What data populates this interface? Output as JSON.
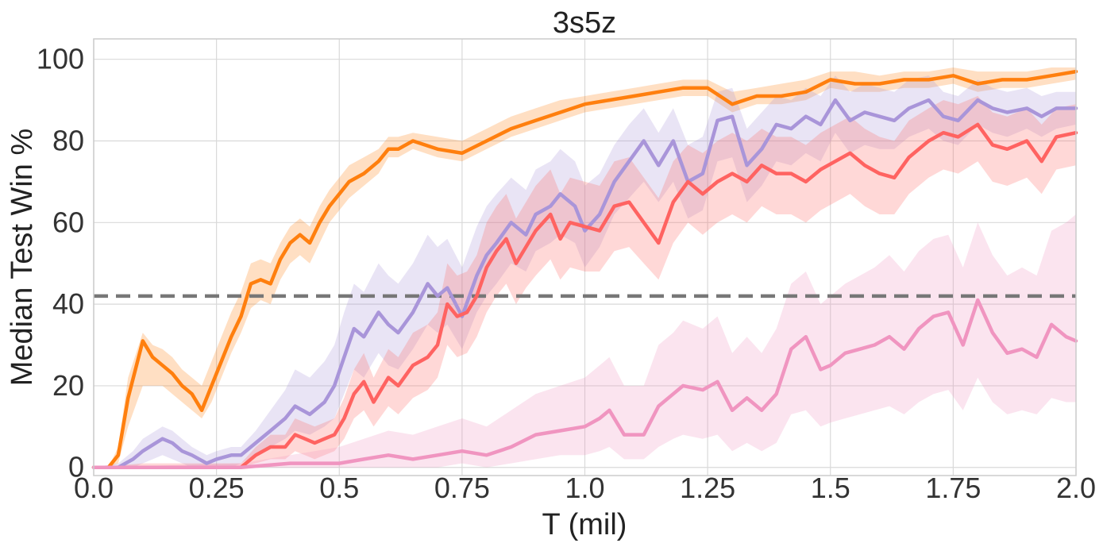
{
  "chart_data": {
    "type": "line",
    "title": "3s5z",
    "xlabel": "T (mil)",
    "ylabel": "Median Test Win %",
    "xlim": [
      0,
      2.0
    ],
    "ylim": [
      -2,
      105
    ],
    "x_ticks": [
      "0.0",
      "0.25",
      "0.5",
      "0.75",
      "1.0",
      "1.25",
      "1.5",
      "1.75",
      "2.0"
    ],
    "y_ticks": [
      "0",
      "20",
      "40",
      "60",
      "80",
      "100"
    ],
    "grid": true,
    "legend": "none",
    "reference_line": {
      "y": 42,
      "style": "dashed",
      "color": "#777777"
    },
    "series": [
      {
        "color": "#ff7f0e",
        "x": [
          0,
          0.03,
          0.05,
          0.07,
          0.1,
          0.12,
          0.14,
          0.16,
          0.18,
          0.2,
          0.22,
          0.24,
          0.26,
          0.28,
          0.3,
          0.32,
          0.34,
          0.36,
          0.38,
          0.4,
          0.42,
          0.44,
          0.46,
          0.48,
          0.5,
          0.52,
          0.55,
          0.58,
          0.6,
          0.62,
          0.65,
          0.7,
          0.75,
          0.8,
          0.85,
          0.9,
          0.95,
          1.0,
          1.05,
          1.1,
          1.15,
          1.2,
          1.25,
          1.3,
          1.35,
          1.4,
          1.45,
          1.5,
          1.55,
          1.6,
          1.65,
          1.7,
          1.75,
          1.8,
          1.85,
          1.9,
          1.95,
          2.0
        ],
        "y": [
          0,
          0,
          3,
          17,
          31,
          27,
          25,
          23,
          20,
          18,
          14,
          20,
          26,
          32,
          37,
          45,
          46,
          45,
          51,
          55,
          57,
          55,
          60,
          64,
          67,
          70,
          72,
          75,
          78,
          78,
          80,
          78,
          77,
          80,
          83,
          85,
          87,
          89,
          90,
          91,
          92,
          93,
          93,
          89,
          91,
          91,
          92,
          95,
          94,
          94,
          95,
          95,
          96,
          94,
          95,
          95,
          96,
          97
        ],
        "lower": [
          0,
          0,
          1,
          10,
          20,
          20,
          20,
          18,
          16,
          14,
          12,
          16,
          22,
          28,
          33,
          39,
          41,
          40,
          46,
          50,
          52,
          50,
          55,
          60,
          63,
          66,
          69,
          72,
          76,
          76,
          78,
          76,
          75,
          78,
          81,
          83,
          85,
          87,
          88,
          89,
          90,
          91,
          91,
          87,
          89,
          89,
          90,
          93,
          92,
          92,
          93,
          93,
          94,
          92,
          93,
          93,
          94,
          95
        ],
        "upper": [
          0,
          0,
          5,
          22,
          33,
          30,
          29,
          27,
          24,
          22,
          20,
          26,
          32,
          38,
          43,
          50,
          51,
          50,
          55,
          59,
          61,
          59,
          64,
          68,
          71,
          74,
          76,
          78,
          81,
          81,
          82,
          81,
          80,
          83,
          86,
          88,
          90,
          91,
          92,
          93,
          94,
          95,
          95,
          92,
          93,
          94,
          95,
          97,
          97,
          96,
          97,
          97,
          98,
          97,
          97,
          97,
          98,
          98
        ]
      },
      {
        "color": "#a995d9",
        "x": [
          0,
          0.05,
          0.08,
          0.1,
          0.14,
          0.16,
          0.18,
          0.2,
          0.23,
          0.25,
          0.28,
          0.3,
          0.33,
          0.36,
          0.39,
          0.41,
          0.44,
          0.47,
          0.49,
          0.51,
          0.53,
          0.55,
          0.58,
          0.6,
          0.62,
          0.65,
          0.68,
          0.7,
          0.72,
          0.75,
          0.78,
          0.8,
          0.82,
          0.85,
          0.88,
          0.9,
          0.93,
          0.95,
          0.98,
          1.0,
          1.03,
          1.06,
          1.09,
          1.12,
          1.15,
          1.18,
          1.21,
          1.24,
          1.27,
          1.3,
          1.33,
          1.36,
          1.39,
          1.42,
          1.45,
          1.48,
          1.51,
          1.54,
          1.57,
          1.6,
          1.63,
          1.66,
          1.7,
          1.73,
          1.76,
          1.8,
          1.83,
          1.86,
          1.9,
          1.93,
          1.96,
          2.0
        ],
        "y": [
          0,
          0,
          2,
          4,
          7,
          6,
          4,
          3,
          1,
          2,
          3,
          3,
          6,
          9,
          12,
          15,
          13,
          16,
          20,
          27,
          34,
          32,
          38,
          35,
          33,
          38,
          45,
          42,
          44,
          37,
          47,
          52,
          55,
          60,
          57,
          62,
          64,
          67,
          64,
          58,
          62,
          70,
          75,
          80,
          74,
          80,
          70,
          72,
          85,
          86,
          74,
          78,
          84,
          83,
          86,
          84,
          90,
          85,
          87,
          86,
          85,
          88,
          90,
          86,
          85,
          90,
          88,
          87,
          88,
          86,
          88,
          88
        ],
        "lower": [
          0,
          0,
          0,
          1,
          3,
          2,
          1,
          0,
          0,
          0,
          0,
          1,
          3,
          5,
          7,
          9,
          8,
          10,
          12,
          18,
          24,
          22,
          28,
          25,
          24,
          29,
          35,
          33,
          35,
          29,
          38,
          42,
          45,
          50,
          48,
          53,
          55,
          57,
          55,
          49,
          54,
          62,
          66,
          70,
          65,
          70,
          61,
          63,
          75,
          76,
          65,
          69,
          75,
          74,
          77,
          75,
          82,
          77,
          79,
          78,
          78,
          81,
          83,
          80,
          79,
          84,
          82,
          81,
          83,
          81,
          83,
          84
        ],
        "upper": [
          0,
          1,
          4,
          7,
          10,
          9,
          7,
          5,
          3,
          4,
          5,
          5,
          9,
          14,
          19,
          24,
          22,
          26,
          30,
          38,
          45,
          43,
          50,
          47,
          45,
          50,
          57,
          54,
          56,
          49,
          59,
          64,
          67,
          71,
          68,
          73,
          75,
          78,
          75,
          69,
          72,
          79,
          84,
          88,
          82,
          88,
          79,
          81,
          92,
          93,
          83,
          87,
          91,
          90,
          93,
          91,
          96,
          92,
          94,
          93,
          92,
          95,
          96,
          92,
          91,
          95,
          93,
          92,
          93,
          91,
          92,
          92
        ]
      },
      {
        "color": "#ff6361",
        "x": [
          0,
          0.1,
          0.2,
          0.3,
          0.33,
          0.36,
          0.39,
          0.41,
          0.43,
          0.45,
          0.47,
          0.49,
          0.51,
          0.53,
          0.55,
          0.57,
          0.6,
          0.62,
          0.65,
          0.68,
          0.7,
          0.72,
          0.74,
          0.76,
          0.78,
          0.8,
          0.82,
          0.84,
          0.86,
          0.88,
          0.9,
          0.93,
          0.95,
          0.97,
          1.0,
          1.03,
          1.06,
          1.09,
          1.12,
          1.15,
          1.18,
          1.21,
          1.24,
          1.27,
          1.3,
          1.33,
          1.36,
          1.39,
          1.42,
          1.45,
          1.48,
          1.51,
          1.54,
          1.57,
          1.6,
          1.63,
          1.66,
          1.7,
          1.73,
          1.76,
          1.8,
          1.83,
          1.86,
          1.9,
          1.93,
          1.96,
          2.0
        ],
        "y": [
          0,
          0,
          0,
          0,
          3,
          5,
          5,
          8,
          7,
          6,
          7,
          8,
          12,
          18,
          21,
          16,
          22,
          20,
          25,
          27,
          30,
          40,
          37,
          38,
          42,
          49,
          53,
          56,
          50,
          54,
          58,
          62,
          56,
          60,
          59,
          58,
          64,
          65,
          60,
          55,
          65,
          70,
          67,
          70,
          72,
          70,
          74,
          72,
          72,
          70,
          73,
          75,
          77,
          74,
          72,
          71,
          76,
          80,
          82,
          81,
          84,
          79,
          78,
          80,
          75,
          81,
          82
        ],
        "lower": [
          0,
          0,
          0,
          0,
          1,
          2,
          2,
          4,
          3,
          2,
          3,
          4,
          7,
          12,
          14,
          10,
          15,
          13,
          17,
          19,
          22,
          30,
          27,
          28,
          32,
          38,
          42,
          45,
          40,
          44,
          47,
          51,
          46,
          49,
          48,
          48,
          53,
          54,
          50,
          46,
          55,
          60,
          57,
          60,
          62,
          60,
          64,
          62,
          62,
          60,
          63,
          65,
          67,
          64,
          62,
          62,
          67,
          71,
          73,
          72,
          75,
          70,
          69,
          71,
          67,
          73,
          74
        ],
        "upper": [
          0,
          1,
          1,
          1,
          5,
          8,
          8,
          12,
          11,
          10,
          11,
          12,
          17,
          24,
          28,
          22,
          29,
          27,
          33,
          35,
          38,
          50,
          47,
          48,
          52,
          60,
          64,
          67,
          61,
          65,
          69,
          73,
          67,
          71,
          70,
          69,
          75,
          76,
          71,
          66,
          75,
          79,
          77,
          80,
          82,
          80,
          83,
          81,
          81,
          79,
          82,
          84,
          86,
          83,
          81,
          80,
          85,
          88,
          90,
          89,
          91,
          87,
          86,
          88,
          84,
          88,
          89
        ]
      },
      {
        "color": "#f095c0",
        "x": [
          0,
          0.3,
          0.4,
          0.45,
          0.5,
          0.55,
          0.6,
          0.65,
          0.7,
          0.75,
          0.8,
          0.85,
          0.9,
          0.95,
          1.0,
          1.03,
          1.05,
          1.08,
          1.12,
          1.15,
          1.18,
          1.2,
          1.24,
          1.27,
          1.3,
          1.33,
          1.36,
          1.39,
          1.42,
          1.45,
          1.48,
          1.5,
          1.53,
          1.56,
          1.59,
          1.62,
          1.65,
          1.68,
          1.71,
          1.74,
          1.77,
          1.8,
          1.83,
          1.86,
          1.89,
          1.92,
          1.95,
          1.98,
          2.0
        ],
        "y": [
          0,
          0,
          1,
          1,
          1,
          2,
          3,
          2,
          3,
          4,
          3,
          5,
          8,
          9,
          10,
          12,
          14,
          8,
          8,
          15,
          18,
          20,
          19,
          21,
          14,
          17,
          14,
          18,
          29,
          32,
          24,
          25,
          28,
          29,
          30,
          32,
          29,
          34,
          37,
          38,
          30,
          41,
          33,
          28,
          29,
          27,
          35,
          32,
          31
        ],
        "lower": [
          0,
          0,
          0,
          0,
          0,
          0,
          0,
          0,
          0,
          1,
          0,
          1,
          2,
          3,
          3,
          4,
          5,
          2,
          2,
          5,
          7,
          8,
          7,
          8,
          4,
          6,
          4,
          6,
          13,
          14,
          10,
          11,
          12,
          13,
          14,
          15,
          13,
          16,
          18,
          19,
          14,
          22,
          16,
          13,
          14,
          13,
          17,
          16,
          16
        ],
        "upper": [
          0,
          1,
          3,
          4,
          5,
          7,
          9,
          8,
          10,
          12,
          10,
          14,
          18,
          20,
          22,
          25,
          27,
          20,
          20,
          30,
          33,
          36,
          34,
          37,
          28,
          32,
          28,
          34,
          45,
          48,
          40,
          42,
          45,
          47,
          49,
          52,
          48,
          53,
          56,
          57,
          49,
          60,
          52,
          47,
          49,
          47,
          58,
          60,
          62
        ]
      }
    ]
  }
}
